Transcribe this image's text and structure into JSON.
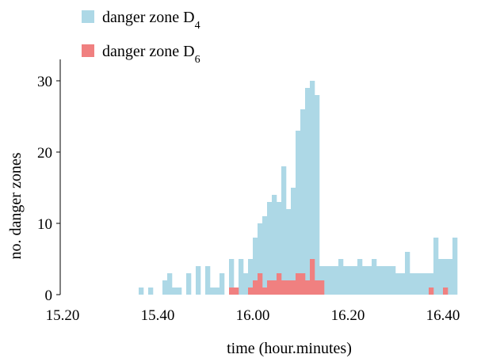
{
  "chart_data": {
    "type": "bar",
    "xlabel": "time (hour.minutes)",
    "ylabel": "no. danger zones",
    "xlim": [
      15.2,
      16.4
    ],
    "ylim": [
      0,
      33
    ],
    "x_ticks": [
      "15.20",
      "15.40",
      "16.00",
      "16.20",
      "16.40"
    ],
    "y_ticks": [
      "0",
      "10",
      "20",
      "30"
    ],
    "bin_width_minutes": 1,
    "bin_start_minute": 0,
    "legend_position": "top-left",
    "series": [
      {
        "name": "danger zone D",
        "subscript": "4",
        "color": "#add8e6",
        "values": [
          0,
          0,
          0,
          0,
          0,
          0,
          0,
          0,
          0,
          0,
          0,
          0,
          0,
          0,
          0,
          0,
          1,
          0,
          1,
          0,
          0,
          2,
          3,
          1,
          1,
          0,
          3,
          0,
          4,
          0,
          4,
          1,
          1,
          3,
          0,
          5,
          0,
          5,
          3,
          5,
          8,
          10,
          11,
          13,
          14,
          13,
          18,
          12,
          15,
          23,
          26,
          29,
          30,
          28,
          4,
          4,
          4,
          4,
          5,
          4,
          4,
          4,
          5,
          4,
          4,
          5,
          4,
          4,
          4,
          4,
          3,
          3,
          6,
          3,
          3,
          3,
          3,
          3,
          8,
          5,
          5,
          5,
          8
        ]
      },
      {
        "name": "danger zone D",
        "subscript": "6",
        "color": "#f08080",
        "values": [
          0,
          0,
          0,
          0,
          0,
          0,
          0,
          0,
          0,
          0,
          0,
          0,
          0,
          0,
          0,
          0,
          0,
          0,
          0,
          0,
          0,
          0,
          0,
          0,
          0,
          0,
          0,
          0,
          0,
          0,
          0,
          0,
          0,
          0,
          0,
          1,
          1,
          0,
          0,
          1,
          2,
          3,
          1,
          2,
          2,
          3,
          2,
          2,
          2,
          3,
          3,
          2,
          5,
          2,
          2,
          0,
          0,
          0,
          0,
          0,
          0,
          0,
          0,
          0,
          0,
          0,
          0,
          0,
          0,
          0,
          0,
          0,
          0,
          0,
          0,
          0,
          0,
          1,
          0,
          0,
          1,
          0,
          0
        ]
      }
    ]
  }
}
